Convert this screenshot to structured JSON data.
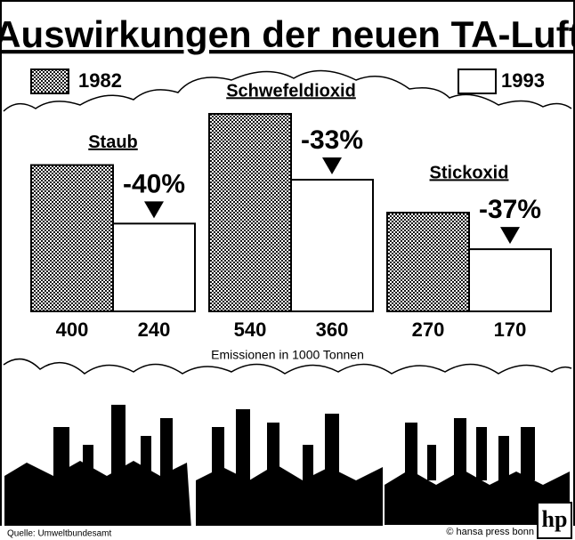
{
  "chart_data": {
    "type": "bar",
    "title": "Auswirkungen der neuen TA-Luft",
    "categories": [
      "Staub",
      "Schwefeldioxid",
      "Stickoxid"
    ],
    "series": [
      {
        "name": "1982",
        "color": "#111111",
        "values": [
          400,
          540,
          270
        ]
      },
      {
        "name": "1993",
        "color": "#ffffff",
        "values": [
          240,
          360,
          170
        ]
      }
    ],
    "change_labels": [
      "-40%",
      "-33%",
      "-37%"
    ],
    "x_label": "Emissionen in 1000 Tonnen",
    "source": "Quelle: Umweltbundesamt",
    "credit": "© hansa press bonn",
    "logo": "hp"
  }
}
